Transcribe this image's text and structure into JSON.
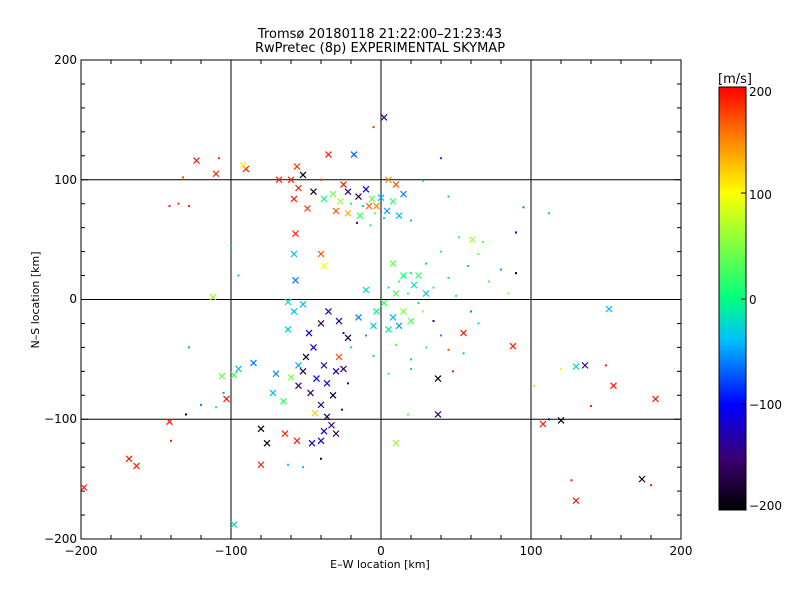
{
  "chart_data": {
    "type": "scatter",
    "title": "Tromsø 20180118 21:22:00–21:23:43",
    "subtitle": "RwPretec (8p) EXPERIMENTAL SKYMAP",
    "xlabel": "E–W location [km]",
    "ylabel": "N–S location [km]",
    "xlim": [
      -200,
      200
    ],
    "ylim": [
      -200,
      200
    ],
    "xticks": [
      "−200",
      "−100",
      "0",
      "100",
      "200"
    ],
    "yticks": [
      "−200",
      "−100",
      "0",
      "100",
      "200"
    ],
    "grid": true,
    "grid_lines_x": [
      -100,
      0,
      100
    ],
    "grid_lines_y": [
      -100,
      0,
      100
    ],
    "colorbar": {
      "label": "[m/s]",
      "range": [
        -200,
        200
      ],
      "ticks": [
        "200",
        "100",
        "0",
        "−100",
        "−200"
      ],
      "colormap": [
        "#000000",
        "#3c0070",
        "#0000ff",
        "#00bfff",
        "#00ff80",
        "#ffff00",
        "#ff8000",
        "#ff0000"
      ],
      "placement": "right"
    },
    "points": [
      {
        "x": 2,
        "y": 152,
        "v": -140,
        "m": "x"
      },
      {
        "x": -5,
        "y": 144,
        "v": 180,
        "m": "d"
      },
      {
        "x": -35,
        "y": 121,
        "v": 190,
        "m": "x"
      },
      {
        "x": -18,
        "y": 121,
        "v": -70,
        "m": "x"
      },
      {
        "x": -123,
        "y": 116,
        "v": 190,
        "m": "x"
      },
      {
        "x": -108,
        "y": 118,
        "v": 180,
        "m": "d"
      },
      {
        "x": -90,
        "y": 109,
        "v": 190,
        "m": "x"
      },
      {
        "x": -110,
        "y": 105,
        "v": 190,
        "m": "x"
      },
      {
        "x": -56,
        "y": 111,
        "v": 180,
        "m": "x"
      },
      {
        "x": -92,
        "y": 112,
        "v": 110,
        "m": "x"
      },
      {
        "x": 5,
        "y": 100,
        "v": 150,
        "m": "x"
      },
      {
        "x": 40,
        "y": 118,
        "v": -80,
        "m": "d"
      },
      {
        "x": 28,
        "y": 99,
        "v": -20,
        "m": "d"
      },
      {
        "x": -132,
        "y": 102,
        "v": 170,
        "m": "d"
      },
      {
        "x": -135,
        "y": 80,
        "v": 180,
        "m": "d"
      },
      {
        "x": -141,
        "y": 78,
        "v": 190,
        "m": "d"
      },
      {
        "x": -128,
        "y": 78,
        "v": 190,
        "m": "d"
      },
      {
        "x": -68,
        "y": 100,
        "v": 190,
        "m": "x"
      },
      {
        "x": -60,
        "y": 100,
        "v": 190,
        "m": "x"
      },
      {
        "x": -55,
        "y": 93,
        "v": 190,
        "m": "x"
      },
      {
        "x": -45,
        "y": 90,
        "v": -180,
        "m": "x"
      },
      {
        "x": -52,
        "y": 104,
        "v": -190,
        "m": "x"
      },
      {
        "x": -58,
        "y": 84,
        "v": 190,
        "m": "x"
      },
      {
        "x": -49,
        "y": 76,
        "v": 180,
        "m": "x"
      },
      {
        "x": -38,
        "y": 84,
        "v": 10,
        "m": "x"
      },
      {
        "x": -32,
        "y": 88,
        "v": 40,
        "m": "x"
      },
      {
        "x": -27,
        "y": 82,
        "v": 60,
        "m": "x"
      },
      {
        "x": -22,
        "y": 90,
        "v": -150,
        "m": "x"
      },
      {
        "x": -15,
        "y": 86,
        "v": -170,
        "m": "x"
      },
      {
        "x": -10,
        "y": 92,
        "v": -120,
        "m": "x"
      },
      {
        "x": -6,
        "y": 84,
        "v": 40,
        "m": "x"
      },
      {
        "x": -3,
        "y": 78,
        "v": 150,
        "m": "x"
      },
      {
        "x": 0,
        "y": 85,
        "v": -40,
        "m": "x"
      },
      {
        "x": 4,
        "y": 74,
        "v": -50,
        "m": "x"
      },
      {
        "x": 8,
        "y": 82,
        "v": 20,
        "m": "x"
      },
      {
        "x": -30,
        "y": 74,
        "v": 170,
        "m": "x"
      },
      {
        "x": -22,
        "y": 72,
        "v": 130,
        "m": "x"
      },
      {
        "x": -14,
        "y": 70,
        "v": 20,
        "m": "x"
      },
      {
        "x": -8,
        "y": 78,
        "v": 160,
        "m": "x"
      },
      {
        "x": 12,
        "y": 70,
        "v": -40,
        "m": "x"
      },
      {
        "x": 15,
        "y": 88,
        "v": -60,
        "m": "x"
      },
      {
        "x": -25,
        "y": 96,
        "v": 190,
        "m": "x"
      },
      {
        "x": -40,
        "y": 100,
        "v": 190,
        "m": "d"
      },
      {
        "x": 10,
        "y": 96,
        "v": 170,
        "m": "x"
      },
      {
        "x": -20,
        "y": 80,
        "v": 0,
        "m": "d"
      },
      {
        "x": -12,
        "y": 78,
        "v": -30,
        "m": "d"
      },
      {
        "x": -4,
        "y": 72,
        "v": 30,
        "m": "d"
      },
      {
        "x": 2,
        "y": 68,
        "v": -20,
        "m": "d"
      },
      {
        "x": -16,
        "y": 64,
        "v": -150,
        "m": "d"
      },
      {
        "x": 20,
        "y": 66,
        "v": -30,
        "m": "d"
      },
      {
        "x": -7,
        "y": 62,
        "v": 10,
        "m": "d"
      },
      {
        "x": 45,
        "y": 86,
        "v": -40,
        "m": "d"
      },
      {
        "x": 95,
        "y": 77,
        "v": -60,
        "m": "d"
      },
      {
        "x": 112,
        "y": 72,
        "v": -40,
        "m": "d"
      },
      {
        "x": 90,
        "y": 56,
        "v": -120,
        "m": "d"
      },
      {
        "x": -100,
        "y": 45,
        "v": -40,
        "m": "d"
      },
      {
        "x": -57,
        "y": 55,
        "v": 190,
        "m": "x"
      },
      {
        "x": -58,
        "y": 38,
        "v": -40,
        "m": "x"
      },
      {
        "x": -40,
        "y": 38,
        "v": 170,
        "m": "x"
      },
      {
        "x": -38,
        "y": 28,
        "v": 100,
        "m": "x"
      },
      {
        "x": -57,
        "y": 16,
        "v": -60,
        "m": "x"
      },
      {
        "x": -95,
        "y": 20,
        "v": -40,
        "m": "d"
      },
      {
        "x": -112,
        "y": 2,
        "v": 60,
        "m": "x"
      },
      {
        "x": -62,
        "y": -2,
        "v": -20,
        "m": "x"
      },
      {
        "x": -52,
        "y": -4,
        "v": -40,
        "m": "x"
      },
      {
        "x": 61,
        "y": 50,
        "v": 60,
        "m": "x"
      },
      {
        "x": 52,
        "y": 52,
        "v": 20,
        "m": "d"
      },
      {
        "x": 68,
        "y": 48,
        "v": 40,
        "m": "d"
      },
      {
        "x": 40,
        "y": 40,
        "v": 10,
        "m": "d"
      },
      {
        "x": 30,
        "y": 30,
        "v": -20,
        "m": "d"
      },
      {
        "x": 20,
        "y": 22,
        "v": 0,
        "m": "d"
      },
      {
        "x": 12,
        "y": 15,
        "v": 20,
        "m": "d"
      },
      {
        "x": 5,
        "y": 10,
        "v": -10,
        "m": "d"
      },
      {
        "x": 18,
        "y": 5,
        "v": 30,
        "m": "d"
      },
      {
        "x": 25,
        "y": -3,
        "v": -30,
        "m": "d"
      },
      {
        "x": 35,
        "y": 10,
        "v": 10,
        "m": "d"
      },
      {
        "x": 45,
        "y": 18,
        "v": -20,
        "m": "d"
      },
      {
        "x": 50,
        "y": 3,
        "v": 20,
        "m": "d"
      },
      {
        "x": 58,
        "y": 28,
        "v": -10,
        "m": "d"
      },
      {
        "x": 65,
        "y": 38,
        "v": 40,
        "m": "d"
      },
      {
        "x": 72,
        "y": 15,
        "v": 30,
        "m": "d"
      },
      {
        "x": 80,
        "y": 25,
        "v": -50,
        "m": "d"
      },
      {
        "x": 85,
        "y": 5,
        "v": 50,
        "m": "d"
      },
      {
        "x": 90,
        "y": 22,
        "v": -190,
        "m": "d"
      },
      {
        "x": 8,
        "y": 30,
        "v": 40,
        "m": "x"
      },
      {
        "x": 15,
        "y": 20,
        "v": 10,
        "m": "x"
      },
      {
        "x": 22,
        "y": 12,
        "v": -20,
        "m": "x"
      },
      {
        "x": 10,
        "y": 5,
        "v": 30,
        "m": "x"
      },
      {
        "x": 2,
        "y": -3,
        "v": 20,
        "m": "x"
      },
      {
        "x": -3,
        "y": -10,
        "v": -10,
        "m": "x"
      },
      {
        "x": 8,
        "y": -15,
        "v": -40,
        "m": "x"
      },
      {
        "x": 15,
        "y": -10,
        "v": 50,
        "m": "x"
      },
      {
        "x": 25,
        "y": 20,
        "v": 20,
        "m": "x"
      },
      {
        "x": 30,
        "y": 5,
        "v": -30,
        "m": "x"
      },
      {
        "x": -10,
        "y": 8,
        "v": -20,
        "m": "x"
      },
      {
        "x": -15,
        "y": -15,
        "v": -60,
        "m": "x"
      },
      {
        "x": -5,
        "y": -22,
        "v": -30,
        "m": "x"
      },
      {
        "x": 5,
        "y": -25,
        "v": -10,
        "m": "x"
      },
      {
        "x": 12,
        "y": -22,
        "v": -50,
        "m": "x"
      },
      {
        "x": 20,
        "y": -18,
        "v": 30,
        "m": "x"
      },
      {
        "x": 28,
        "y": -10,
        "v": 60,
        "m": "d"
      },
      {
        "x": 35,
        "y": -18,
        "v": -160,
        "m": "d"
      },
      {
        "x": 40,
        "y": -30,
        "v": -50,
        "m": "d"
      },
      {
        "x": 45,
        "y": -42,
        "v": 170,
        "m": "d"
      },
      {
        "x": 55,
        "y": -28,
        "v": 190,
        "m": "x"
      },
      {
        "x": 30,
        "y": -40,
        "v": 20,
        "m": "d"
      },
      {
        "x": 20,
        "y": -50,
        "v": -30,
        "m": "d"
      },
      {
        "x": 10,
        "y": -38,
        "v": 40,
        "m": "d"
      },
      {
        "x": -25,
        "y": -28,
        "v": -120,
        "m": "d"
      },
      {
        "x": -20,
        "y": -40,
        "v": -20,
        "m": "d"
      },
      {
        "x": -10,
        "y": -30,
        "v": -50,
        "m": "d"
      },
      {
        "x": -28,
        "y": -48,
        "v": 170,
        "m": "x"
      },
      {
        "x": -35,
        "y": -10,
        "v": -130,
        "m": "x"
      },
      {
        "x": -40,
        "y": -20,
        "v": -160,
        "m": "x"
      },
      {
        "x": -48,
        "y": -28,
        "v": -110,
        "m": "x"
      },
      {
        "x": -45,
        "y": -40,
        "v": -120,
        "m": "x"
      },
      {
        "x": -50,
        "y": -48,
        "v": -180,
        "m": "x"
      },
      {
        "x": -38,
        "y": -55,
        "v": -140,
        "m": "x"
      },
      {
        "x": -52,
        "y": -60,
        "v": -170,
        "m": "x"
      },
      {
        "x": -43,
        "y": -66,
        "v": -100,
        "m": "x"
      },
      {
        "x": -55,
        "y": -72,
        "v": -150,
        "m": "x"
      },
      {
        "x": -47,
        "y": -78,
        "v": -160,
        "m": "x"
      },
      {
        "x": -36,
        "y": -70,
        "v": -120,
        "m": "x"
      },
      {
        "x": -30,
        "y": -60,
        "v": -130,
        "m": "x"
      },
      {
        "x": -32,
        "y": -80,
        "v": -180,
        "m": "x"
      },
      {
        "x": -40,
        "y": -88,
        "v": -140,
        "m": "x"
      },
      {
        "x": -44,
        "y": -95,
        "v": 120,
        "m": "x"
      },
      {
        "x": -36,
        "y": -98,
        "v": -170,
        "m": "x"
      },
      {
        "x": -33,
        "y": -105,
        "v": -150,
        "m": "x"
      },
      {
        "x": -38,
        "y": -110,
        "v": -120,
        "m": "x"
      },
      {
        "x": -30,
        "y": -112,
        "v": -160,
        "m": "x"
      },
      {
        "x": -40,
        "y": -118,
        "v": -110,
        "m": "x"
      },
      {
        "x": -46,
        "y": -120,
        "v": -130,
        "m": "x"
      },
      {
        "x": -58,
        "y": -10,
        "v": -40,
        "m": "x"
      },
      {
        "x": -62,
        "y": -25,
        "v": -30,
        "m": "x"
      },
      {
        "x": -55,
        "y": -55,
        "v": -50,
        "m": "x"
      },
      {
        "x": -60,
        "y": -65,
        "v": 50,
        "m": "x"
      },
      {
        "x": -70,
        "y": -62,
        "v": -60,
        "m": "x"
      },
      {
        "x": -72,
        "y": -78,
        "v": -40,
        "m": "x"
      },
      {
        "x": -65,
        "y": -85,
        "v": 20,
        "m": "x"
      },
      {
        "x": -28,
        "y": -18,
        "v": -140,
        "m": "x"
      },
      {
        "x": -22,
        "y": -32,
        "v": -170,
        "m": "x"
      },
      {
        "x": -25,
        "y": -58,
        "v": -160,
        "m": "x"
      },
      {
        "x": -22,
        "y": -70,
        "v": -140,
        "m": "d"
      },
      {
        "x": -26,
        "y": -92,
        "v": -150,
        "m": "d"
      },
      {
        "x": -85,
        "y": -53,
        "v": -60,
        "m": "x"
      },
      {
        "x": -95,
        "y": -58,
        "v": -40,
        "m": "x"
      },
      {
        "x": -98,
        "y": -63,
        "v": 30,
        "m": "x"
      },
      {
        "x": -106,
        "y": -64,
        "v": 40,
        "m": "x"
      },
      {
        "x": -105,
        "y": -78,
        "v": -50,
        "m": "d"
      },
      {
        "x": -103,
        "y": -83,
        "v": 190,
        "m": "x"
      },
      {
        "x": -110,
        "y": -90,
        "v": 10,
        "m": "d"
      },
      {
        "x": -128,
        "y": -40,
        "v": -50,
        "m": "d"
      },
      {
        "x": -80,
        "y": -108,
        "v": -190,
        "m": "x"
      },
      {
        "x": -76,
        "y": -120,
        "v": -190,
        "m": "x"
      },
      {
        "x": -64,
        "y": -112,
        "v": 190,
        "m": "x"
      },
      {
        "x": -56,
        "y": -118,
        "v": 190,
        "m": "x"
      },
      {
        "x": -80,
        "y": -138,
        "v": 190,
        "m": "x"
      },
      {
        "x": -62,
        "y": -138,
        "v": -40,
        "m": "d"
      },
      {
        "x": -52,
        "y": -140,
        "v": -40,
        "m": "d"
      },
      {
        "x": -40,
        "y": -133,
        "v": -190,
        "m": "d"
      },
      {
        "x": -98,
        "y": -188,
        "v": -30,
        "m": "x"
      },
      {
        "x": -141,
        "y": -102,
        "v": 190,
        "m": "x"
      },
      {
        "x": -140,
        "y": -118,
        "v": 190,
        "m": "d"
      },
      {
        "x": -130,
        "y": -96,
        "v": -190,
        "m": "d"
      },
      {
        "x": -120,
        "y": -88,
        "v": -60,
        "m": "d"
      },
      {
        "x": -168,
        "y": -133,
        "v": 190,
        "m": "x"
      },
      {
        "x": -163,
        "y": -139,
        "v": 190,
        "m": "x"
      },
      {
        "x": -198,
        "y": -157,
        "v": 190,
        "m": "x"
      },
      {
        "x": 88,
        "y": -39,
        "v": 190,
        "m": "x"
      },
      {
        "x": 102,
        "y": -72,
        "v": 60,
        "m": "d"
      },
      {
        "x": 108,
        "y": -104,
        "v": 190,
        "m": "x"
      },
      {
        "x": 112,
        "y": -100,
        "v": -130,
        "m": "d"
      },
      {
        "x": 120,
        "y": -101,
        "v": -190,
        "m": "x"
      },
      {
        "x": 136,
        "y": -55,
        "v": -140,
        "m": "x"
      },
      {
        "x": 130,
        "y": -56,
        "v": -20,
        "m": "x"
      },
      {
        "x": 120,
        "y": -58,
        "v": 90,
        "m": "d"
      },
      {
        "x": 140,
        "y": -89,
        "v": 190,
        "m": "d"
      },
      {
        "x": 150,
        "y": -55,
        "v": 190,
        "m": "d"
      },
      {
        "x": 155,
        "y": -72,
        "v": 190,
        "m": "x"
      },
      {
        "x": 152,
        "y": -8,
        "v": -40,
        "m": "x"
      },
      {
        "x": 183,
        "y": -83,
        "v": 190,
        "m": "x"
      },
      {
        "x": 127,
        "y": -151,
        "v": 190,
        "m": "d"
      },
      {
        "x": 130,
        "y": -168,
        "v": 190,
        "m": "x"
      },
      {
        "x": 174,
        "y": -150,
        "v": -190,
        "m": "x"
      },
      {
        "x": 180,
        "y": -155,
        "v": 190,
        "m": "d"
      },
      {
        "x": 38,
        "y": -66,
        "v": -190,
        "m": "x"
      },
      {
        "x": 38,
        "y": -96,
        "v": -150,
        "m": "x"
      },
      {
        "x": 18,
        "y": -96,
        "v": 40,
        "m": "d"
      },
      {
        "x": 10,
        "y": -120,
        "v": 60,
        "m": "x"
      },
      {
        "x": 20,
        "y": -58,
        "v": -20,
        "m": "d"
      },
      {
        "x": 5,
        "y": -62,
        "v": 10,
        "m": "d"
      },
      {
        "x": -5,
        "y": -47,
        "v": -30,
        "m": "d"
      },
      {
        "x": 48,
        "y": -60,
        "v": 190,
        "m": "d"
      },
      {
        "x": 55,
        "y": -45,
        "v": -40,
        "m": "d"
      },
      {
        "x": 60,
        "y": -10,
        "v": -60,
        "m": "d"
      },
      {
        "x": 65,
        "y": -20,
        "v": -20,
        "m": "d"
      }
    ]
  }
}
